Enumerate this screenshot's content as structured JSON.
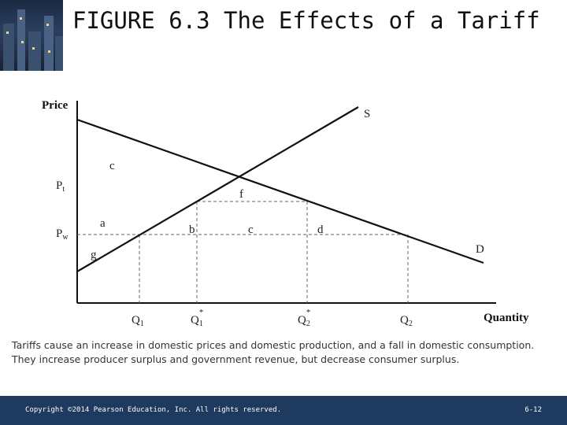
{
  "slide": {
    "title": "FIGURE 6.3  The Effects of a Tariff",
    "caption": "Tariffs cause an increase in domestic prices and domestic production, and a fall in domestic consumption. They increase producer surplus and government revenue, but decrease consumer surplus.",
    "footer": {
      "copyright": "Copyright ©2014 Pearson Education, Inc. All rights reserved.",
      "page": "6-12"
    }
  },
  "diagram": {
    "y_axis_label": "Price",
    "x_axis_label": "Quantity",
    "price_labels": {
      "pt": "P",
      "pt_sub": "t",
      "pw": "P",
      "pw_sub": "w"
    },
    "quantity_labels": {
      "q1": "Q",
      "q1_sub": "1",
      "q1_star": "Q",
      "q1_star_sub": "1",
      "q1_star_sup": "*",
      "q2_star": "Q",
      "q2_star_sub": "2",
      "q2_star_sup": "*",
      "q2": "Q",
      "q2_sub": "2"
    },
    "curve_labels": {
      "supply": "S",
      "demand": "D"
    },
    "area_labels": {
      "c_top": "c",
      "f": "f",
      "a": "a",
      "b": "b",
      "c": "c",
      "d": "d",
      "g": "g"
    }
  }
}
